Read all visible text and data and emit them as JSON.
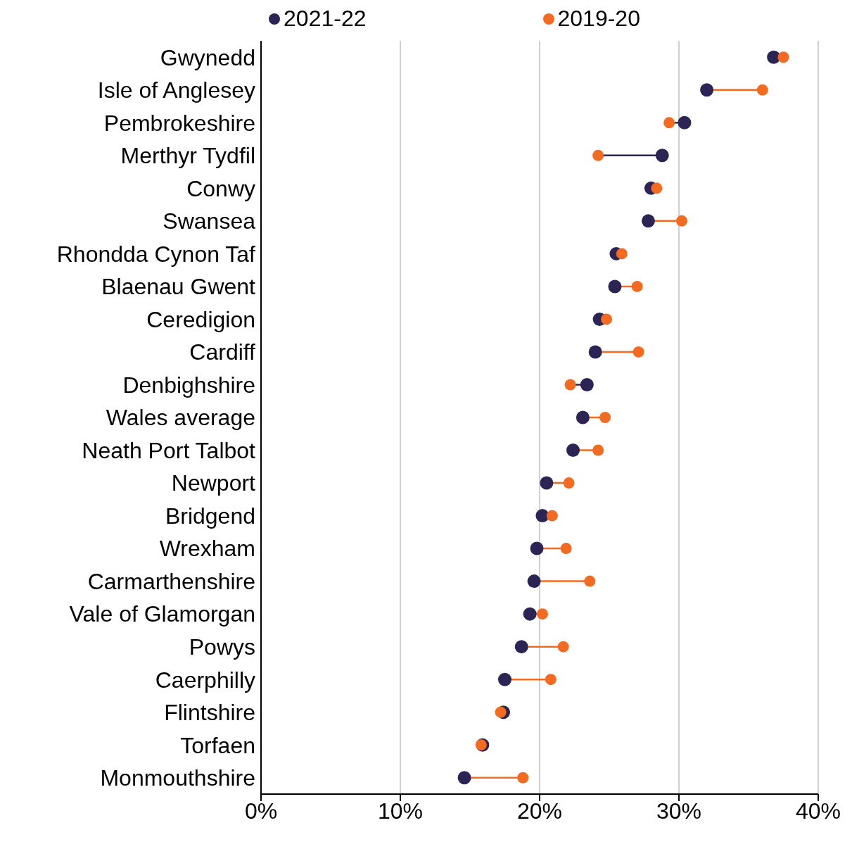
{
  "chart_data": {
    "type": "scatter",
    "orientation": "horizontal",
    "categories": [
      "Gwynedd",
      "Isle of Anglesey",
      "Pembrokeshire",
      "Merthyr Tydfil",
      "Conwy",
      "Swansea",
      "Rhondda Cynon Taf",
      "Blaenau Gwent",
      "Ceredigion",
      "Cardiff",
      "Denbighshire",
      "Wales average",
      "Neath Port Talbot",
      "Newport",
      "Bridgend",
      "Wrexham",
      "Carmarthenshire",
      "Vale of Glamorgan",
      "Powys",
      "Caerphilly",
      "Flintshire",
      "Torfaen",
      "Monmouthshire"
    ],
    "series": [
      {
        "name": "2021-22",
        "color": "#2b2454",
        "values": [
          36.8,
          32.0,
          30.4,
          28.8,
          28.0,
          27.8,
          25.5,
          25.4,
          24.3,
          24.0,
          23.4,
          23.1,
          22.4,
          20.5,
          20.2,
          19.8,
          19.6,
          19.3,
          18.7,
          17.5,
          17.4,
          15.9,
          14.6
        ]
      },
      {
        "name": "2019-20",
        "color": "#f26b21",
        "values": [
          37.5,
          36.0,
          29.3,
          24.2,
          28.4,
          30.2,
          25.9,
          27.0,
          24.8,
          27.1,
          22.2,
          24.7,
          24.2,
          22.1,
          20.9,
          21.9,
          23.6,
          20.2,
          21.7,
          20.8,
          17.2,
          15.8,
          18.8
        ]
      }
    ],
    "xlim": [
      0,
      40
    ],
    "xticks": [
      {
        "value": 0,
        "label": "0%"
      },
      {
        "value": 10,
        "label": "10%"
      },
      {
        "value": 20,
        "label": "20%"
      },
      {
        "value": 30,
        "label": "30%"
      },
      {
        "value": 40,
        "label": "40%"
      }
    ],
    "grid": "x",
    "legend": "top",
    "marker": "circle"
  }
}
